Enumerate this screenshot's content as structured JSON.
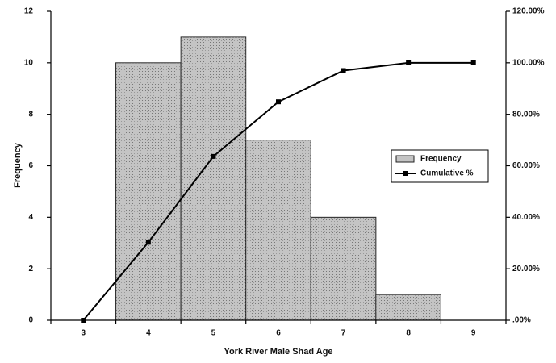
{
  "chart_data": {
    "type": "bar",
    "x_label": "York River Male Shad Age",
    "y_label": "Frequency",
    "categories": [
      "3",
      "4",
      "5",
      "6",
      "7",
      "8",
      "9"
    ],
    "series": [
      {
        "name": "Frequency",
        "type": "bar",
        "color": "#c4c4c4",
        "values": [
          0,
          10,
          11,
          7,
          4,
          1,
          0
        ]
      },
      {
        "name": "Cumulative %",
        "type": "line",
        "axis": "y2",
        "color": "#000000",
        "values": [
          0,
          30.3,
          63.64,
          84.85,
          96.97,
          100,
          100
        ]
      }
    ],
    "ylim": [
      0,
      12
    ],
    "yticks": [
      0,
      2,
      4,
      6,
      8,
      10,
      12
    ],
    "y2lim": [
      0,
      120
    ],
    "y2ticks": [
      {
        "value": 0,
        "label": ".00%"
      },
      {
        "value": 20,
        "label": "20.00%"
      },
      {
        "value": 40,
        "label": "40.00%"
      },
      {
        "value": 60,
        "label": "60.00%"
      },
      {
        "value": 80,
        "label": "80.00%"
      },
      {
        "value": 100,
        "label": "100.00%"
      },
      {
        "value": 120,
        "label": "120.00%"
      }
    ],
    "grid": false,
    "legend": "right"
  }
}
